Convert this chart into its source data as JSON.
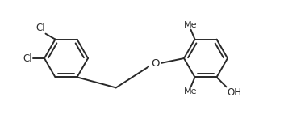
{
  "bg_color": "#ffffff",
  "bond_color": "#2a2a2a",
  "text_color": "#2a2a2a",
  "line_width": 1.4,
  "font_size": 8.5,
  "figsize": [
    3.78,
    1.52
  ],
  "dpi": 100,
  "xlim": [
    0.0,
    3.78
  ],
  "ylim": [
    0.0,
    1.52
  ]
}
